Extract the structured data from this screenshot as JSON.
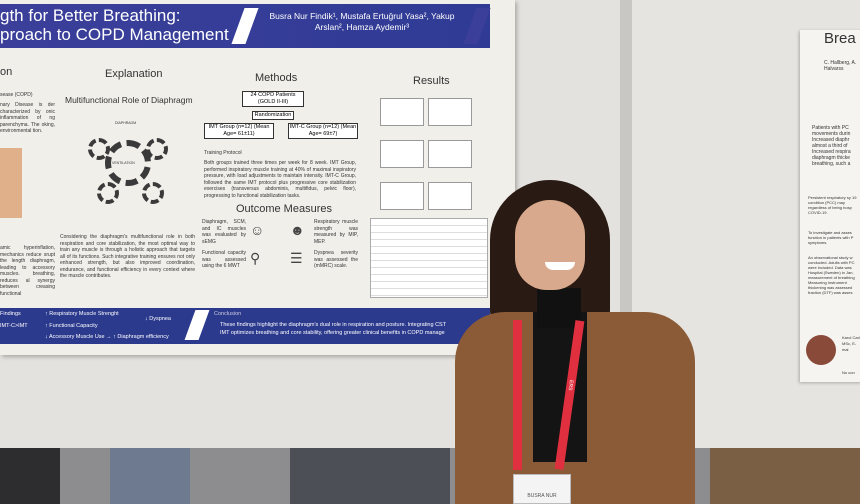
{
  "poster_left": {
    "title_line1": "gth for Better Breathing:",
    "title_line2": "proach to COPD Management",
    "authors": "Busra Nur Findik¹, Mustafa Ertuğrul Yasa², Yakup Arslan², Hamza Aydemir³",
    "sections": {
      "intro_heading": "on",
      "intro_sub": "sease (COPD)",
      "intro_text": "nary Disease is der characterized by onic inflammation of ng parenchyma. The oking, environmental tion.",
      "intro_text2": "amic hyperinflation, mechanics reduce srupt the length diaphragm, leading to accessory muscles. breathing, reduces al synergy between creasing functional",
      "explanation_heading": "Explanation",
      "explanation_sub": "Multifunctional Role of Diaphragm",
      "diagram_center": "VENTILATION",
      "diagram_top": "DIAPHRAGM",
      "explanation_text": "Considering the diaphragm's multifunctional role in both respiration and core stabilization, the most optimal way to train any muscle is through a holistic approach that targets all of its functions. Such integrative training ensures not only enhanced strength, but also improved coordination, endurance, and functional efficiency in every context where the muscle contributes.",
      "methods_heading": "Methods",
      "patients_box": "24 COPD Patients (GOLD II-III)",
      "randomization": "Randomization",
      "imt_group": "IMT Group (n=12) (Mean Age= 61±11)",
      "imtc_group": "IMT-C Group (n=12) (Mean Age= 69±7)",
      "training_heading": "Training Protocol",
      "training_text": "Both groups trained three times per week for 8 week. IMT Group, performed inspiratory muscle training at 40% of maximal inspiratory pressure, with load adjustments to maintain intensity. IMT-C Group, followed the same IMT protocol plus progressive core stabilization exercises (transversus abdominis, multifidus, pelvic floor), progressing to functional stabilization tasks.",
      "outcome_heading": "Outcome Measures",
      "outcome_1": "Diaphragm, SCM, and IC muscles was evaluated by sEMG",
      "outcome_2": "Respiratory muscle strength was measured by MIP, MEP.",
      "outcome_3": "Functional capacity was assessed using the 6 MWT",
      "outcome_4": "Dyspnea severity was assessed the (mMRC) scale.",
      "results_heading": "Results"
    },
    "footer": {
      "findings_label": "Findings",
      "findings_group": "IMT-C>IMT",
      "f1": "↑ Respiratory Muscle Strenght",
      "f2": "↑ Functional Capacity",
      "f3": "↓ Accessory Muscle Use → ↑ Diaphragm efficiency",
      "f4": "↓ Dyspnea",
      "conclusion_label": "Conclusion",
      "conclusion_text1": "These findings highlight the diaphragm's dual role in respiration and posture. Integrating CST",
      "conclusion_text2": "IMT optimizes breathing and core stability, offering greater clinical benefits in COPD manage"
    }
  },
  "poster_right": {
    "title": "Brea",
    "authors": "C. Hallberg, A. Halvarss",
    "text1": "Patients with PC movements durin Increased diaphr almost a third of Increased respira diaphragm thicke breathing, such a",
    "text2": "Persistent respiratory sy 19 condition (PCC) may regardless of being hosp COVID-19.",
    "text3": "To investigate and asses function in patients with P symptoms.",
    "text4": "An observational study w conducted. Adults with PC were included. Data was Hospital (Sweden) in Jan, measurement of breathing Measuring Instrument thickening was assessed fraction (DTF) was asses",
    "contact": "Karol Carl MSc, E-mai",
    "footer": "No con"
  },
  "badge": {
    "name": "BUSRA NUR"
  },
  "lanyard_text": "ERS",
  "colors": {
    "poster_blue": "#2f3b95",
    "lanyard_red": "#e0303f",
    "blazer_brown": "#8b5a36"
  }
}
